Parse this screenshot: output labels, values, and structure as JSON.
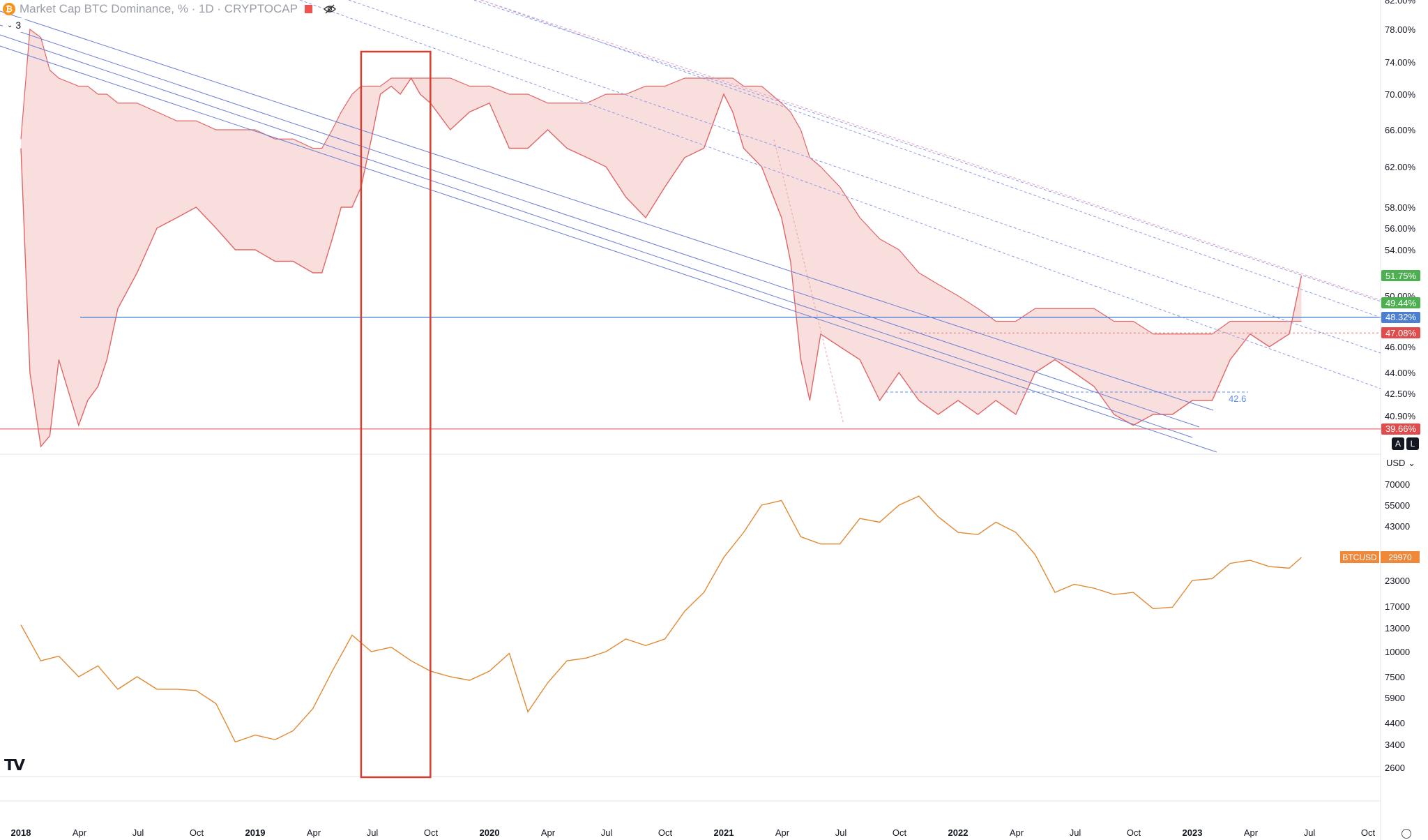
{
  "header": {
    "title": "Market Cap BTC Dominance, % · 1D · CRYPTOCAP",
    "symbol_icon": "bitcoin-icon",
    "collapse_count": "3"
  },
  "colors": {
    "dominance_line": "#e06666",
    "dominance_fill": "#f9dede",
    "dominance_up": "#4caf50",
    "btc_line": "#e08a33",
    "trend_blue": "#6b7fd6",
    "highlight_box": "#d93d2f",
    "support_line": "#4a7fd4"
  },
  "top_axis": {
    "labels": [
      "82.00%",
      "78.00%",
      "74.00%",
      "70.00%",
      "66.00%",
      "62.00%",
      "58.00%",
      "56.00%",
      "54.00%",
      "50.00%",
      "46.00%",
      "44.00%",
      "42.50%",
      "40.90%"
    ],
    "tags": [
      {
        "text": "51.75%",
        "color": "#4caf50"
      },
      {
        "text": "49.44%",
        "color": "#4caf50"
      },
      {
        "text": "48.32%",
        "color": "#4a7fd4"
      },
      {
        "text": "47.08%",
        "color": "#e14b4b"
      },
      {
        "text": "39.66%",
        "color": "#e14b4b"
      }
    ],
    "buttons": [
      "A",
      "L"
    ]
  },
  "bottom_axis": {
    "currency": "USD",
    "labels": [
      "70000",
      "55000",
      "43000",
      "23000",
      "17000",
      "13000",
      "10000",
      "7500",
      "5900",
      "4400",
      "3400",
      "2600"
    ],
    "tag_name": "BTCUSD",
    "tag_value": "29970"
  },
  "annotations": {
    "level_label": "42.6"
  },
  "x_axis": {
    "labels": [
      "2018",
      "Apr",
      "Jul",
      "Oct",
      "2019",
      "Apr",
      "Jul",
      "Oct",
      "2020",
      "Apr",
      "Jul",
      "Oct",
      "2021",
      "Apr",
      "Jul",
      "Oct",
      "2022",
      "Apr",
      "Jul",
      "Oct",
      "2023",
      "Apr",
      "Jul",
      "Oct"
    ],
    "years": [
      "2018",
      "2019",
      "2020",
      "2021",
      "2022",
      "2023"
    ]
  },
  "chart_data": [
    {
      "type": "area",
      "title": "Market Cap BTC Dominance, % · 1D · CRYPTOCAP",
      "unit": "%",
      "ylim": [
        38,
        82
      ],
      "x": [
        "2018-01-01",
        "2018-01-15",
        "2018-02-01",
        "2018-02-15",
        "2018-03-01",
        "2018-04-01",
        "2018-04-15",
        "2018-05-01",
        "2018-05-15",
        "2018-06-01",
        "2018-07-01",
        "2018-08-01",
        "2018-09-01",
        "2018-10-01",
        "2018-11-01",
        "2018-12-01",
        "2019-01-01",
        "2019-02-01",
        "2019-03-01",
        "2019-04-01",
        "2019-04-15",
        "2019-05-01",
        "2019-05-15",
        "2019-06-01",
        "2019-06-15",
        "2019-07-01",
        "2019-07-15",
        "2019-08-01",
        "2019-08-15",
        "2019-09-01",
        "2019-09-15",
        "2019-10-01",
        "2019-11-01",
        "2019-12-01",
        "2020-01-01",
        "2020-02-01",
        "2020-03-01",
        "2020-04-01",
        "2020-05-01",
        "2020-06-01",
        "2020-07-01",
        "2020-08-01",
        "2020-09-01",
        "2020-10-01",
        "2020-11-01",
        "2020-12-01",
        "2021-01-01",
        "2021-01-15",
        "2021-02-01",
        "2021-03-01",
        "2021-04-01",
        "2021-04-15",
        "2021-05-01",
        "2021-05-15",
        "2021-06-01",
        "2021-07-01",
        "2021-08-01",
        "2021-09-01",
        "2021-10-01",
        "2021-11-01",
        "2021-12-01",
        "2022-01-01",
        "2022-02-01",
        "2022-03-01",
        "2022-04-01",
        "2022-05-01",
        "2022-06-01",
        "2022-07-01",
        "2022-08-01",
        "2022-09-01",
        "2022-10-01",
        "2022-11-01",
        "2022-12-01",
        "2023-01-01",
        "2023-02-01",
        "2023-03-01",
        "2023-04-01",
        "2023-05-01",
        "2023-06-01",
        "2023-06-20"
      ],
      "values": [
        64,
        44,
        37,
        39,
        45,
        40,
        42,
        43,
        45,
        49,
        52,
        56,
        57,
        58,
        56,
        54,
        54,
        53,
        53,
        52,
        52,
        55,
        58,
        58,
        60,
        65,
        70,
        71,
        70,
        72,
        70,
        69,
        66,
        68,
        69,
        64,
        64,
        66,
        64,
        63,
        62,
        59,
        57,
        60,
        63,
        64,
        70,
        68,
        64,
        62,
        57,
        53,
        45,
        42,
        47,
        46,
        45,
        42,
        44,
        42,
        41,
        42,
        41,
        42,
        41,
        44,
        45,
        44,
        43,
        41,
        40,
        41,
        41,
        42,
        42,
        45,
        47,
        46,
        47,
        51.75
      ],
      "envelope": [
        65,
        78,
        77,
        73,
        72,
        71,
        71,
        70,
        70,
        69,
        69,
        68,
        67,
        67,
        66,
        66,
        66,
        65,
        65,
        64,
        64,
        66,
        68,
        70,
        71,
        71,
        71,
        72,
        72,
        72,
        72,
        72,
        72,
        71,
        71,
        70,
        70,
        69,
        69,
        69,
        70,
        70,
        71,
        71,
        72,
        72,
        72,
        72,
        71,
        71,
        69,
        68,
        66,
        63,
        62,
        60,
        57,
        55,
        54,
        52,
        51,
        50,
        49,
        48,
        48,
        49,
        49,
        49,
        49,
        48,
        48,
        47,
        47,
        47,
        47,
        48,
        48,
        48,
        48,
        48
      ],
      "levels": {
        "support": 48.32,
        "prev_low": 39.66,
        "range_low": 42.6,
        "tag_49": 49.44,
        "tag_47": 47.08
      }
    },
    {
      "type": "line",
      "name": "BTCUSD",
      "scale": "log",
      "unit": "USD",
      "ylim": [
        2600,
        70000
      ],
      "x": [
        "2018-01-01",
        "2018-02-01",
        "2018-03-01",
        "2018-04-01",
        "2018-05-01",
        "2018-06-01",
        "2018-07-01",
        "2018-08-01",
        "2018-09-01",
        "2018-10-01",
        "2018-11-01",
        "2018-12-01",
        "2019-01-01",
        "2019-02-01",
        "2019-03-01",
        "2019-04-01",
        "2019-05-01",
        "2019-06-01",
        "2019-07-01",
        "2019-08-01",
        "2019-09-01",
        "2019-10-01",
        "2019-11-01",
        "2019-12-01",
        "2020-01-01",
        "2020-02-01",
        "2020-03-01",
        "2020-04-01",
        "2020-05-01",
        "2020-06-01",
        "2020-07-01",
        "2020-08-01",
        "2020-09-01",
        "2020-10-01",
        "2020-11-01",
        "2020-12-01",
        "2021-01-01",
        "2021-02-01",
        "2021-03-01",
        "2021-04-01",
        "2021-05-01",
        "2021-06-01",
        "2021-07-01",
        "2021-08-01",
        "2021-09-01",
        "2021-10-01",
        "2021-11-01",
        "2021-12-01",
        "2022-01-01",
        "2022-02-01",
        "2022-03-01",
        "2022-04-01",
        "2022-05-01",
        "2022-06-01",
        "2022-07-01",
        "2022-08-01",
        "2022-09-01",
        "2022-10-01",
        "2022-11-01",
        "2022-12-01",
        "2023-01-01",
        "2023-02-01",
        "2023-03-01",
        "2023-04-01",
        "2023-05-01",
        "2023-06-01",
        "2023-06-20"
      ],
      "values": [
        13500,
        9000,
        9500,
        7500,
        8500,
        6500,
        7500,
        6500,
        6500,
        6400,
        5500,
        3500,
        3800,
        3600,
        4000,
        5200,
        8000,
        12000,
        10000,
        10500,
        9000,
        8000,
        7500,
        7200,
        8000,
        9800,
        5000,
        7000,
        9000,
        9300,
        10000,
        11500,
        10700,
        11500,
        16000,
        20000,
        30000,
        40000,
        55000,
        58000,
        38000,
        35000,
        35000,
        47000,
        45000,
        55000,
        61000,
        48000,
        40000,
        39000,
        45000,
        40000,
        31000,
        20000,
        22000,
        21000,
        19500,
        20000,
        16500,
        16800,
        23000,
        23500,
        28000,
        29000,
        27000,
        26500,
        29970
      ]
    }
  ]
}
